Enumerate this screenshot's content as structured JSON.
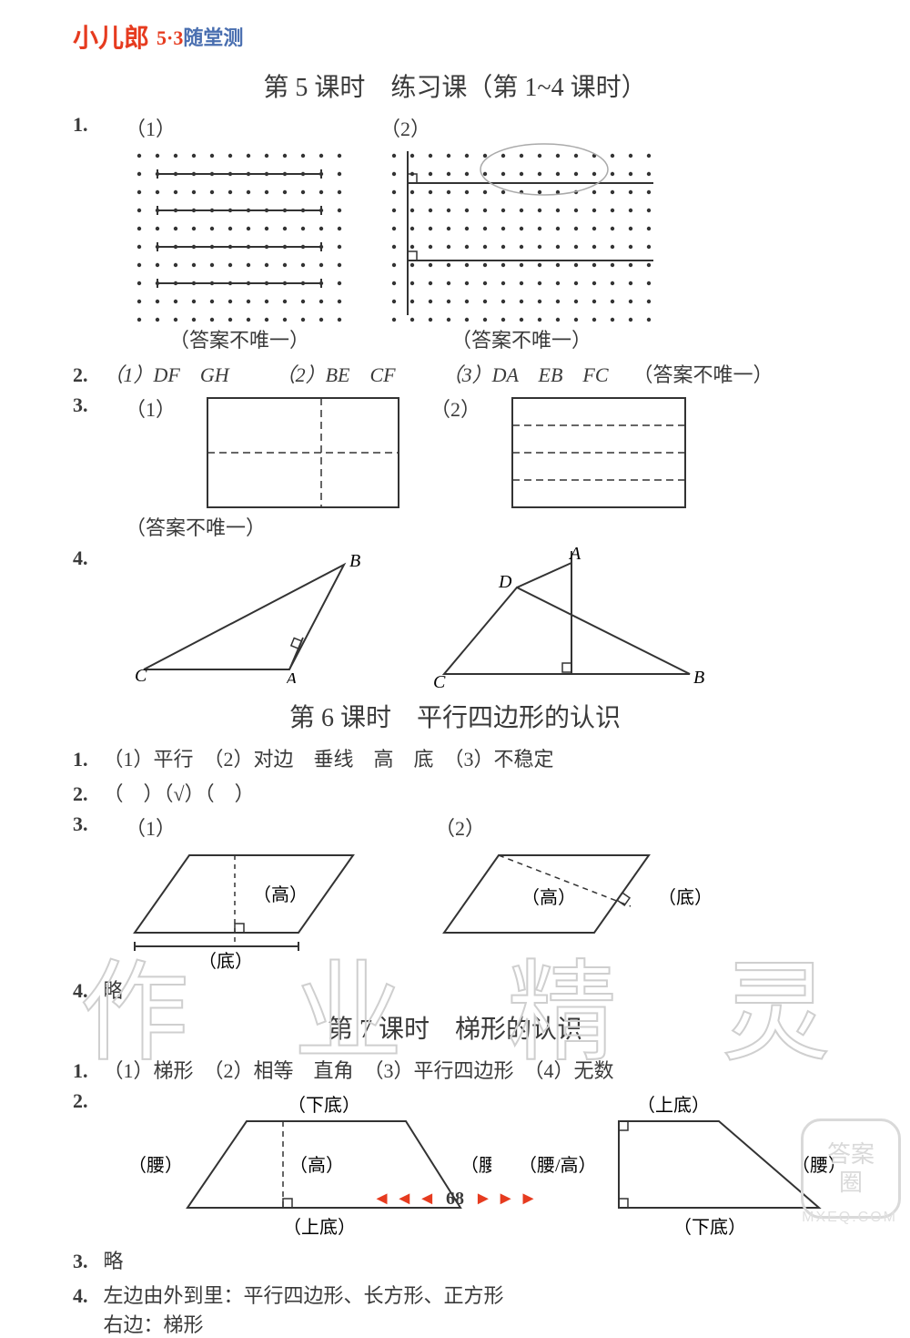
{
  "header": {
    "logo_cn": "小儿郎",
    "logo_53": "5·3",
    "logo_sub": "随堂测"
  },
  "lesson5": {
    "title": "第 5 课时　练习课（第 1~4 课时）",
    "q1": {
      "num": "1.",
      "a": "（1）",
      "b": "（2）",
      "note1": "（答案不唯一）",
      "note2": "（答案不唯一）"
    },
    "q2": {
      "num": "2.",
      "p1": "（1）DF　GH",
      "p2": "（2）BE　CF",
      "p3": "（3）DA　EB　FC",
      "note": "（答案不唯一）"
    },
    "q3": {
      "num": "3.",
      "a": "（1）",
      "b": "（2）",
      "note": "（答案不唯一）"
    },
    "q4": {
      "num": "4.",
      "labA": "A",
      "labB": "B",
      "labC": "C",
      "labD": "D"
    }
  },
  "lesson6": {
    "title": "第 6 课时　平行四边形的认识",
    "q1": {
      "num": "1.",
      "text": "（1）平行　（2）对边　垂线　高　底　（3）不稳定"
    },
    "q2": {
      "num": "2.",
      "text": "（　）（√）（　）"
    },
    "q3": {
      "num": "3.",
      "a": "（1）",
      "b": "（2）",
      "gao": "（高）",
      "di": "（底）"
    },
    "q4": {
      "num": "4.",
      "text": "略"
    }
  },
  "lesson7": {
    "title": "第 7 课时　梯形的认识",
    "q1": {
      "num": "1.",
      "text": "（1）梯形　（2）相等　直角　（3）平行四边形　（4）无数"
    },
    "q2": {
      "num": "2.",
      "top": "（下底）",
      "bot": "（上底）",
      "hi": "（高）",
      "yao": "（腰）",
      "top2": "（上底）",
      "bot2": "（下底）",
      "yaogao": "（腰/高）"
    },
    "q3": {
      "num": "3.",
      "text": "略"
    },
    "q4": {
      "num": "4.",
      "line1": "左边由外到里：平行四边形、长方形、正方形",
      "line2": "右边：梯形"
    }
  },
  "footer": {
    "page": "68"
  },
  "watermark": {
    "chars": [
      "作",
      "业",
      "精",
      "灵"
    ]
  },
  "stamp": {
    "l1": "答案",
    "l2": "圈"
  },
  "mxe": "MXEQ.COM",
  "colors": {
    "ink": "#3a3a3a",
    "red": "#e63b1f",
    "blue": "#4a6fb0",
    "grid": "#333",
    "wm": "#cfcfcf"
  }
}
